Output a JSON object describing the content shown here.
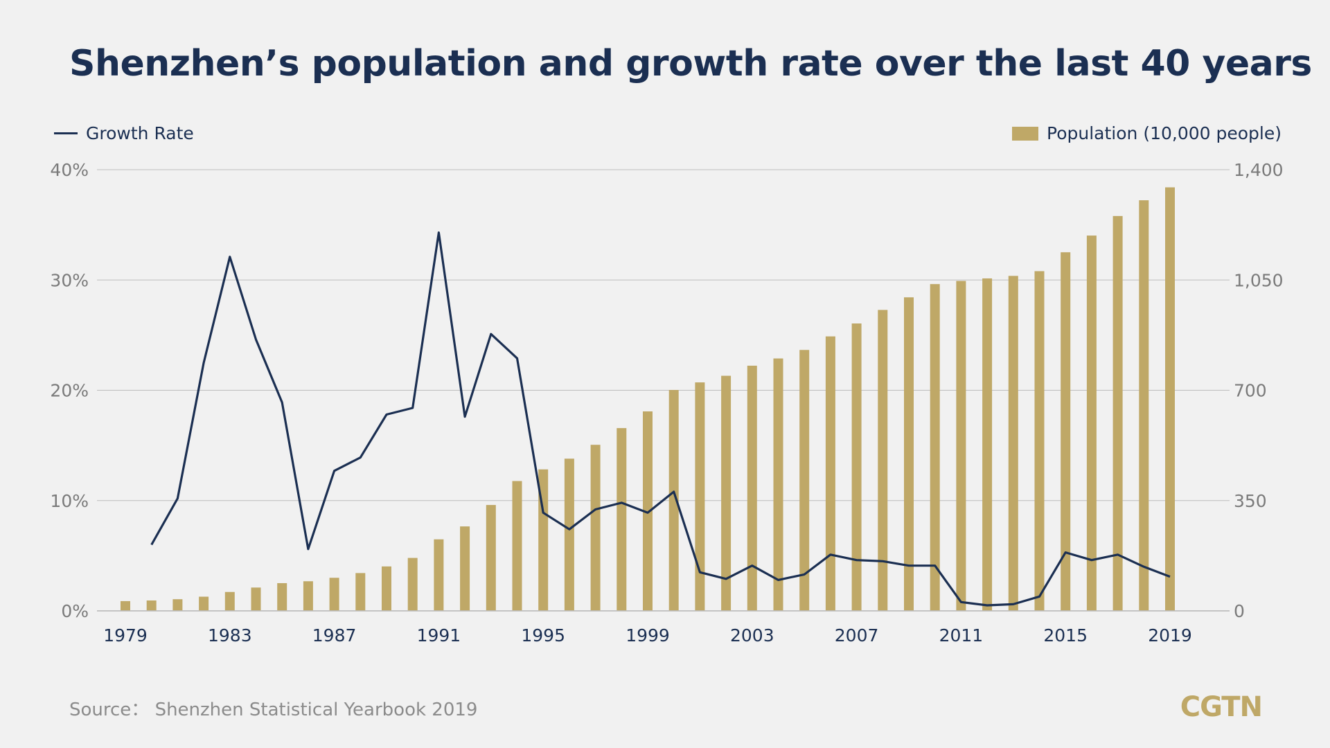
{
  "title": "Shenzhen’s population and growth rate over the last 40 years",
  "legend": {
    "growth_label": "Growth Rate",
    "population_label": "Population (10,000 people)"
  },
  "source": "Source： Shenzhen Statistical Yearbook 2019",
  "logo": "CGTN",
  "colors": {
    "bar": "#bfa867",
    "line": "#1b2f52",
    "grid": "#bdbdbd",
    "tick": "#7a7a7a",
    "xtick": "#1b2f52"
  },
  "chart_data": {
    "type": "bar+line",
    "years": [
      1979,
      1980,
      1981,
      1982,
      1983,
      1984,
      1985,
      1986,
      1987,
      1988,
      1989,
      1990,
      1991,
      1992,
      1993,
      1994,
      1995,
      1996,
      1997,
      1998,
      1999,
      2000,
      2001,
      2002,
      2003,
      2004,
      2005,
      2006,
      2007,
      2008,
      2009,
      2010,
      2011,
      2012,
      2013,
      2014,
      2015,
      2016,
      2017,
      2018,
      2019
    ],
    "x_tick_labels": [
      "1979",
      "1983",
      "1987",
      "1991",
      "1995",
      "1999",
      "2003",
      "2007",
      "2011",
      "2015",
      "2019"
    ],
    "series": [
      {
        "name": "Population (10,000 people)",
        "type": "bar",
        "axis": "right",
        "values": [
          31,
          33,
          37,
          45,
          60,
          74,
          88,
          94,
          105,
          120,
          141,
          168,
          227,
          268,
          336,
          412,
          449,
          483,
          527,
          580,
          633,
          701,
          725,
          746,
          778,
          801,
          828,
          871,
          912,
          955,
          995,
          1037,
          1047,
          1055,
          1063,
          1078,
          1138,
          1191,
          1253,
          1303,
          1344
        ]
      },
      {
        "name": "Growth Rate",
        "type": "line",
        "axis": "left",
        "unit": "%",
        "start_index": 1,
        "values": [
          6.0,
          10.2,
          22.5,
          32.1,
          24.6,
          18.9,
          5.6,
          12.7,
          13.9,
          17.8,
          18.4,
          34.3,
          17.6,
          25.1,
          22.9,
          8.9,
          7.4,
          9.2,
          9.8,
          8.9,
          10.8,
          3.5,
          2.9,
          4.1,
          2.8,
          3.3,
          5.1,
          4.6,
          4.5,
          4.1,
          4.1,
          0.8,
          0.5,
          0.6,
          1.3,
          5.3,
          4.6,
          5.1,
          4.0,
          3.1
        ]
      }
    ],
    "y_left": {
      "ticks": [
        "0%",
        "10%",
        "20%",
        "30%",
        "40%"
      ],
      "range": [
        0,
        40
      ]
    },
    "y_right": {
      "ticks": [
        "0",
        "350",
        "700",
        "1,050",
        "1,400"
      ],
      "range": [
        0,
        1400
      ]
    },
    "grid": true,
    "legend_placement": "top"
  }
}
